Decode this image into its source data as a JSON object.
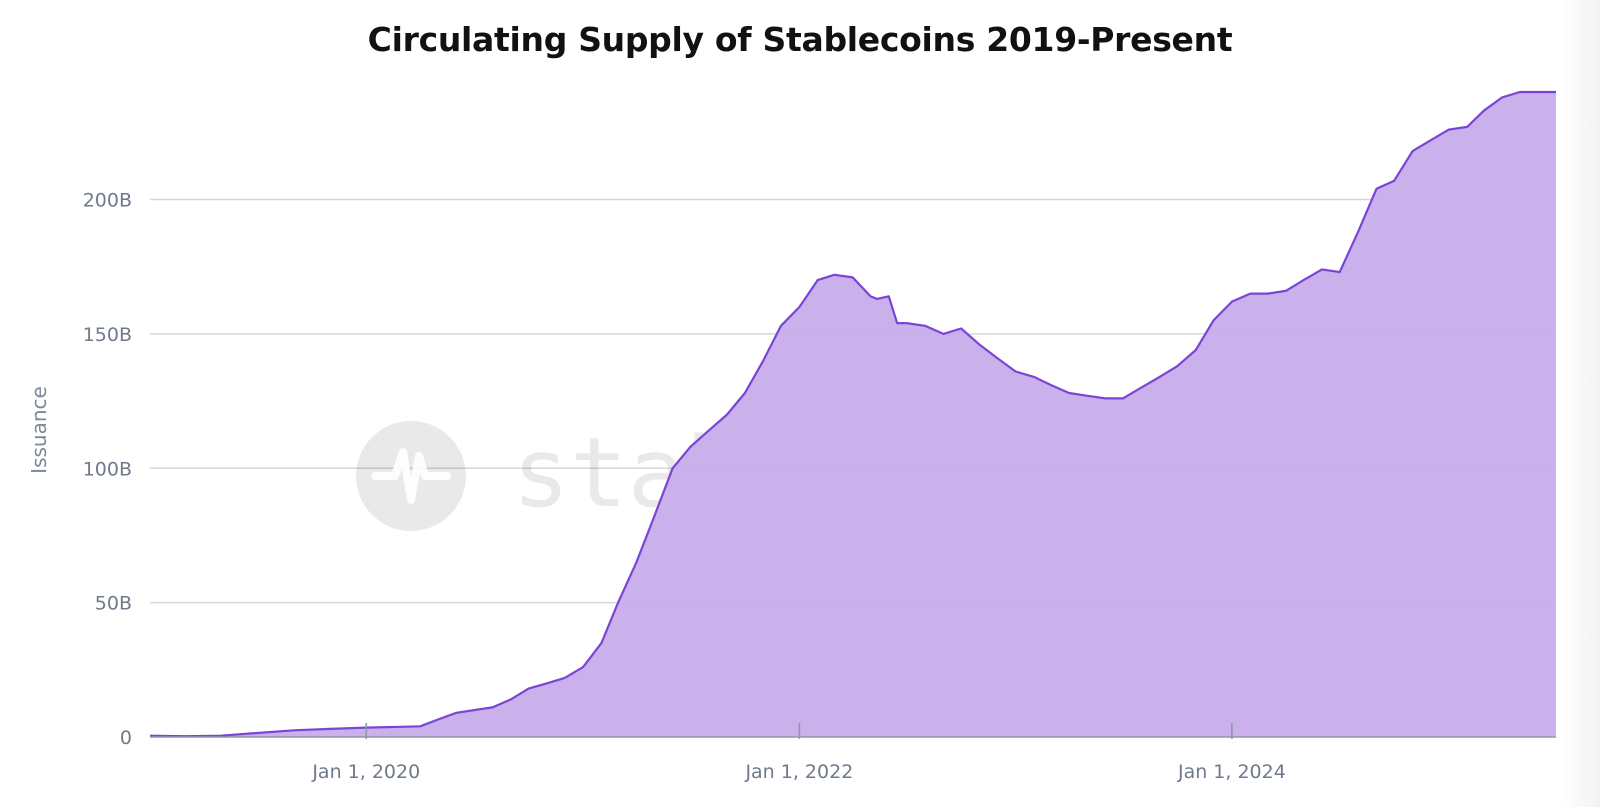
{
  "chart_data": {
    "type": "area",
    "title": "Circulating Supply of Stablecoins 2019-Present",
    "xlabel": "",
    "ylabel": "Issuance",
    "y_ticks": [
      {
        "value": 0,
        "label": "0"
      },
      {
        "value": 50,
        "label": "50B"
      },
      {
        "value": 100,
        "label": "100B"
      },
      {
        "value": 150,
        "label": "150B"
      },
      {
        "value": 200,
        "label": "200B"
      }
    ],
    "x_ticks": [
      {
        "value": "2020-01-01",
        "label": "Jan 1, 2020"
      },
      {
        "value": "2022-01-01",
        "label": "Jan 1, 2022"
      },
      {
        "value": "2024-01-01",
        "label": "Jan 1, 2024"
      }
    ],
    "xlim": [
      "2019-01-01",
      "2025-07-01"
    ],
    "ylim": [
      0,
      240
    ],
    "y_unit": "billions USD",
    "grid": "horizontal",
    "colors": {
      "line": "#7a45d6",
      "fill": "#c9aeea",
      "grid": "#d6d6d9",
      "axis": "#8e98aa"
    },
    "watermark": "stablepulse.org",
    "series": [
      {
        "name": "",
        "x": [
          "2019-01-01",
          "2019-03-01",
          "2019-05-01",
          "2019-07-01",
          "2019-09-01",
          "2019-11-01",
          "2020-01-01",
          "2020-03-01",
          "2020-04-01",
          "2020-05-01",
          "2020-06-01",
          "2020-07-01",
          "2020-08-01",
          "2020-09-01",
          "2020-10-01",
          "2020-11-01",
          "2020-12-01",
          "2021-01-01",
          "2021-02-01",
          "2021-03-01",
          "2021-04-01",
          "2021-05-01",
          "2021-06-01",
          "2021-07-01",
          "2021-08-01",
          "2021-09-01",
          "2021-10-01",
          "2021-11-01",
          "2021-12-01",
          "2022-01-01",
          "2022-02-01",
          "2022-03-01",
          "2022-04-01",
          "2022-05-01",
          "2022-05-12",
          "2022-06-01",
          "2022-06-15",
          "2022-07-01",
          "2022-08-01",
          "2022-09-01",
          "2022-10-01",
          "2022-11-01",
          "2022-12-01",
          "2023-01-01",
          "2023-02-01",
          "2023-03-01",
          "2023-04-01",
          "2023-05-01",
          "2023-06-01",
          "2023-07-01",
          "2023-08-01",
          "2023-09-01",
          "2023-10-01",
          "2023-11-01",
          "2023-12-01",
          "2024-01-01",
          "2024-02-01",
          "2024-03-01",
          "2024-04-01",
          "2024-05-01",
          "2024-06-01",
          "2024-07-01",
          "2024-08-01",
          "2024-09-01",
          "2024-10-01",
          "2024-11-01",
          "2024-12-01",
          "2025-01-01",
          "2025-02-01",
          "2025-03-01",
          "2025-04-01",
          "2025-05-01",
          "2025-06-01",
          "2025-07-01"
        ],
        "values": [
          0.5,
          0.3,
          0.5,
          1.5,
          2.5,
          3,
          3.5,
          3.8,
          4,
          6.5,
          9,
          10,
          11,
          14,
          18,
          20,
          22,
          26,
          35,
          50,
          65,
          82,
          100,
          108,
          114,
          120,
          128,
          140,
          153,
          160,
          170,
          172,
          171,
          164,
          163,
          164,
          154,
          154,
          153,
          150,
          152,
          146,
          141,
          136,
          134,
          131,
          128,
          127,
          126,
          126,
          130,
          134,
          138,
          144,
          155,
          162,
          165,
          165,
          166,
          170,
          174,
          173,
          188,
          204,
          207,
          218,
          222,
          226,
          227,
          233,
          238,
          240,
          240,
          240
        ]
      }
    ]
  }
}
